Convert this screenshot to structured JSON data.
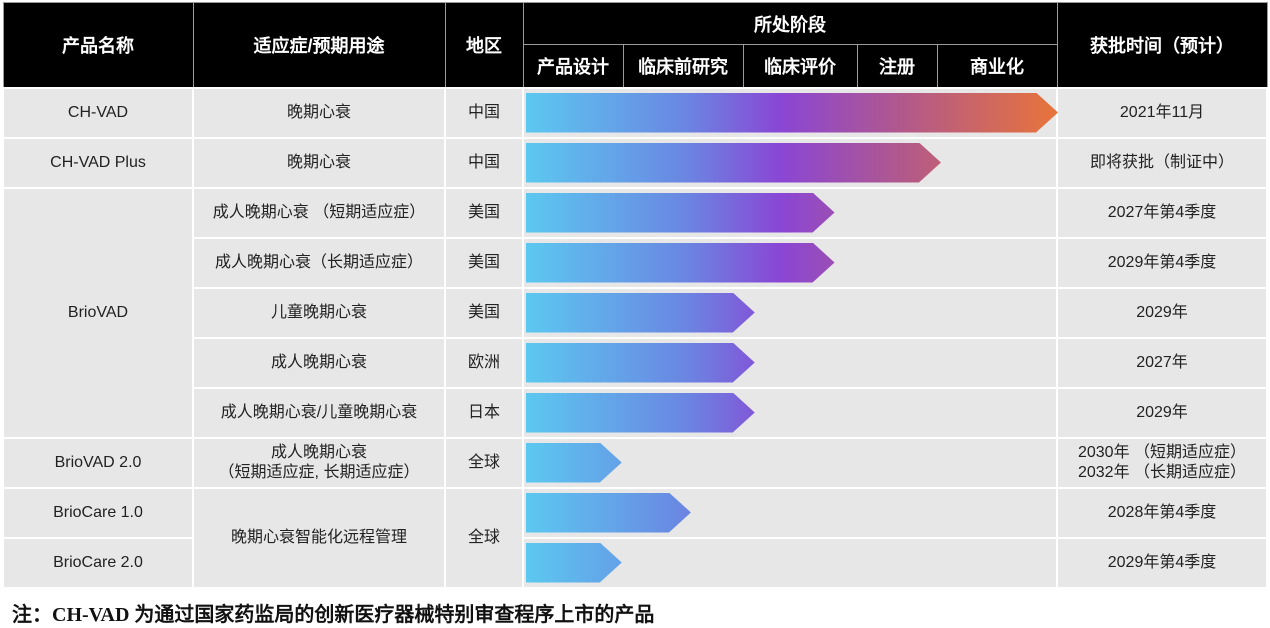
{
  "header": {
    "product": "产品名称",
    "indication": "适应症/预期用途",
    "region": "地区",
    "stage": "所处阶段",
    "stages": [
      "产品设计",
      "临床前研究",
      "临床评价",
      "注册",
      "商业化"
    ],
    "approval": "获批时间（预计）"
  },
  "rows": [
    {
      "product": "CH-VAD",
      "indication": "晚期心衰",
      "region": "中国",
      "progress_pct": 100,
      "approval": "2021年11月"
    },
    {
      "product": "CH-VAD Plus",
      "indication": "晚期心衰",
      "region": "中国",
      "progress_pct": 78,
      "approval": "即将获批（制证中）"
    },
    {
      "product": "BrioVAD",
      "indication": "成人晚期心衰 （短期适应症）",
      "region": "美国",
      "progress_pct": 58,
      "approval": "2027年第4季度"
    },
    {
      "indication": "成人晚期心衰（长期适应症）",
      "region": "美国",
      "progress_pct": 58,
      "approval": "2029年第4季度"
    },
    {
      "indication": "儿童晚期心衰",
      "region": "美国",
      "progress_pct": 43,
      "approval": "2029年"
    },
    {
      "indication": "成人晚期心衰",
      "region": "欧洲",
      "progress_pct": 43,
      "approval": "2027年"
    },
    {
      "indication": "成人晚期心衰/儿童晚期心衰",
      "region": "日本",
      "progress_pct": 43,
      "approval": "2029年"
    },
    {
      "product": "BrioVAD 2.0",
      "indication_line1": "成人晚期心衰",
      "indication_line2": "（短期适应症, 长期适应症）",
      "region": "全球",
      "progress_pct": 18,
      "approval_line1": "2030年 （短期适应症）",
      "approval_line2": "2032年 （长期适应症）"
    },
    {
      "product": "BrioCare 1.0",
      "indication": "晚期心衰智能化远程管理",
      "region": "全球",
      "progress_pct": 31,
      "approval": "2028年第4季度"
    },
    {
      "product": "BrioCare 2.0",
      "progress_pct": 18,
      "approval": "2029年第4季度"
    }
  ],
  "footnote": "注：CH-VAD 为通过国家药监局的创新医疗器械特别审查程序上市的产品",
  "colors": {
    "header_bg": "#000000",
    "cell_bg": "#e7e7e7",
    "bar_start": "#5cc8f0",
    "bar_mid": "#8a46d4",
    "bar_end": "#e8743a"
  }
}
